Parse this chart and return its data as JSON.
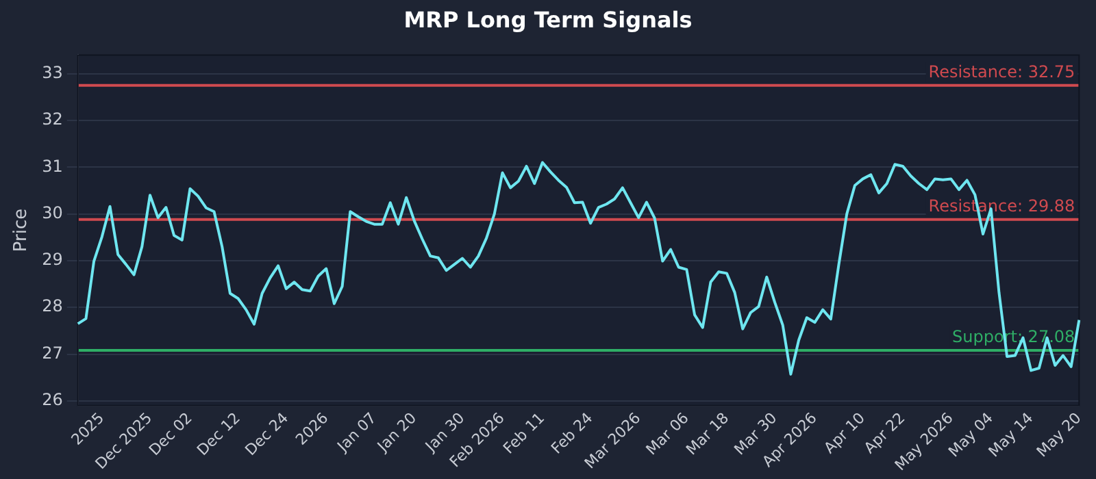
{
  "chart_data": {
    "type": "line",
    "title": "MRP Long Term Signals",
    "ylabel": "Price",
    "categories": [
      null,
      null,
      null,
      "2025",
      null,
      null,
      null,
      null,
      null,
      "Dec 2025",
      null,
      null,
      null,
      null,
      "Dec 02",
      null,
      null,
      null,
      null,
      null,
      "Dec 12",
      null,
      null,
      null,
      null,
      null,
      "Dec 24",
      null,
      null,
      null,
      null,
      "2026",
      null,
      null,
      null,
      null,
      null,
      "Jan 07",
      null,
      null,
      null,
      null,
      "Jan 20",
      null,
      null,
      null,
      null,
      null,
      "Jan 30",
      null,
      null,
      null,
      null,
      "Feb 2026",
      null,
      null,
      null,
      null,
      "Feb 11",
      null,
      null,
      null,
      null,
      null,
      "Feb 24",
      null,
      null,
      null,
      null,
      null,
      "Mar 2026",
      null,
      null,
      null,
      null,
      null,
      "Mar 06",
      null,
      null,
      null,
      null,
      "Mar 18",
      null,
      null,
      null,
      null,
      null,
      "Mar 30",
      null,
      null,
      null,
      null,
      "Apr 2026",
      null,
      null,
      null,
      null,
      null,
      "Apr 10",
      null,
      null,
      null,
      null,
      "Apr 22",
      null,
      null,
      null,
      null,
      null,
      "May 2026",
      null,
      null,
      null,
      null,
      "May 04",
      null,
      null,
      null,
      null,
      "May 14",
      null,
      null,
      null,
      null,
      null,
      "May 20"
    ],
    "series": [
      {
        "color": "#6ee6f0",
        "values": [
          27.65,
          27.76,
          28.99,
          29.51,
          30.16,
          29.13,
          28.92,
          28.7,
          29.3,
          30.4,
          29.92,
          30.14,
          29.54,
          29.44,
          30.54,
          30.38,
          30.13,
          30.05,
          29.3,
          28.3,
          28.19,
          27.95,
          27.64,
          28.3,
          28.63,
          28.89,
          28.4,
          28.54,
          28.38,
          28.35,
          28.67,
          28.83,
          28.08,
          28.45,
          30.05,
          29.94,
          29.84,
          29.78,
          29.78,
          30.24,
          29.78,
          30.35,
          29.85,
          29.46,
          29.1,
          29.06,
          28.79,
          28.92,
          29.05,
          28.86,
          29.1,
          29.48,
          30.0,
          30.88,
          30.56,
          30.7,
          31.02,
          30.65,
          31.1,
          30.9,
          30.72,
          30.57,
          30.24,
          30.25,
          29.8,
          30.14,
          30.21,
          30.32,
          30.56,
          30.24,
          29.92,
          30.25,
          29.91,
          28.99,
          29.24,
          28.86,
          28.81,
          27.84,
          27.57,
          28.54,
          28.76,
          28.73,
          28.32,
          27.54,
          27.89,
          28.02,
          28.65,
          28.11,
          27.62,
          26.57,
          27.3,
          27.78,
          27.68,
          27.95,
          27.75,
          28.92,
          30.0,
          30.61,
          30.75,
          30.84,
          30.45,
          30.65,
          31.06,
          31.02,
          30.81,
          30.65,
          30.52,
          30.75,
          30.73,
          30.75,
          30.52,
          30.72,
          30.41,
          29.57,
          30.11,
          28.32,
          26.95,
          26.97,
          27.35,
          26.65,
          26.7,
          27.35,
          26.76,
          26.97,
          26.73,
          27.73
        ]
      }
    ],
    "ylim": [
      25.9,
      33.4
    ],
    "yticks": [
      26,
      27,
      28,
      29,
      30,
      31,
      32,
      33
    ],
    "grid": "y",
    "legend": false,
    "marker": "none",
    "line_style": "solid",
    "ref_lines": [
      {
        "axis": "y",
        "value": 32.75,
        "label": "Resistance: 32.75",
        "color": "#d04a4f"
      },
      {
        "axis": "y",
        "value": 29.88,
        "label": "Resistance: 29.88",
        "color": "#d04a4f"
      },
      {
        "axis": "y",
        "value": 27.08,
        "label": "Support: 27.08",
        "color": "#2fae66"
      }
    ]
  }
}
